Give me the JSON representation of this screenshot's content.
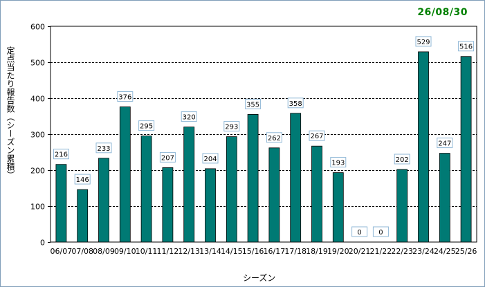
{
  "chart_data": {
    "type": "bar",
    "date": "26/08/30",
    "xlabel": "シーズン",
    "ylabel": "定点当たり報告数（シーズン累積）",
    "ylim": [
      0,
      600
    ],
    "yticks": [
      0,
      100,
      200,
      300,
      400,
      500,
      600
    ],
    "grid": true,
    "categories": [
      "06/07",
      "07/08",
      "08/09",
      "09/10",
      "10/11",
      "11/12",
      "12/13",
      "13/14",
      "14/15",
      "15/16",
      "16/17",
      "17/18",
      "18/19",
      "19/20",
      "20/21",
      "21/22",
      "22/23",
      "23/24",
      "24/25",
      "25/26"
    ],
    "values": [
      216,
      146,
      233,
      376,
      295,
      207,
      320,
      204,
      293,
      355,
      262,
      358,
      267,
      193,
      0,
      0,
      202,
      529,
      247,
      516
    ],
    "bar_color": "#007a74",
    "label_border_color": "#8fb7d6"
  }
}
